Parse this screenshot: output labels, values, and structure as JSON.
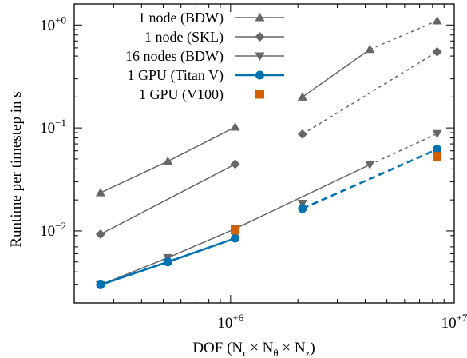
{
  "chart_data": {
    "type": "line",
    "title": "",
    "xlabel": "DOF (N_r × N_θ × N_z)",
    "ylabel": "Runtime per timestep in s",
    "xscale": "log",
    "yscale": "log",
    "xlim": [
      200000,
      10000000
    ],
    "ylim": [
      0.002,
      1.6
    ],
    "xticks": [
      {
        "value": 1000000,
        "base": "10",
        "exp": "+6"
      },
      {
        "value": 10000000,
        "base": "10",
        "exp": "+7"
      }
    ],
    "yticks": [
      {
        "value": 1,
        "base": "10",
        "exp": "+0"
      },
      {
        "value": 0.1,
        "base": "10",
        "exp": "−1"
      },
      {
        "value": 0.01,
        "base": "10",
        "exp": "−2"
      }
    ],
    "legend_position": "top-right",
    "series": [
      {
        "name": "1 node (BDW)",
        "marker": "triangle-up",
        "color": "#666666",
        "points": [
          [
            262144,
            0.0235
          ],
          [
            524288,
            0.0475
          ],
          [
            1048576,
            0.102
          ],
          [
            2097152,
            0.2
          ],
          [
            4194304,
            0.58
          ],
          [
            8388608,
            1.1
          ]
        ],
        "solid_segments": [
          [
            0,
            1
          ],
          [
            1,
            2
          ],
          [
            3,
            4
          ]
        ],
        "dashed_segments": [
          [
            4,
            5
          ]
        ]
      },
      {
        "name": "1 node (SKL)",
        "marker": "diamond",
        "color": "#666666",
        "points": [
          [
            262144,
            0.0093
          ],
          [
            1048576,
            0.0445
          ],
          [
            2097152,
            0.087
          ],
          [
            8388608,
            0.55
          ]
        ],
        "solid_segments": [
          [
            0,
            1
          ]
        ],
        "dashed_segments": [
          [
            2,
            3
          ]
        ]
      },
      {
        "name": "16 nodes (BDW)",
        "marker": "triangle-down",
        "color": "#666666",
        "points": [
          [
            262144,
            0.003
          ],
          [
            524288,
            0.0055
          ],
          [
            1048576,
            0.0105
          ],
          [
            2097152,
            0.0185
          ],
          [
            4194304,
            0.044
          ],
          [
            8388608,
            0.088
          ]
        ],
        "solid_segments": [
          [
            0,
            1
          ],
          [
            1,
            2
          ],
          [
            2,
            4
          ]
        ],
        "dashed_segments": [
          [
            4,
            5
          ]
        ]
      },
      {
        "name": "1 GPU (Titan V)",
        "marker": "circle",
        "color": "#0072b2",
        "points": [
          [
            262144,
            0.003
          ],
          [
            524288,
            0.005
          ],
          [
            1048576,
            0.0085
          ],
          [
            2097152,
            0.0165
          ],
          [
            8388608,
            0.062
          ]
        ],
        "solid_segments": [
          [
            0,
            1
          ],
          [
            1,
            2
          ]
        ],
        "dashed_segments": [
          [
            3,
            4
          ]
        ]
      },
      {
        "name": "1 GPU (V100)",
        "marker": "square",
        "color": "#d55e00",
        "points": [
          [
            1048576,
            0.0102
          ],
          [
            8388608,
            0.053
          ]
        ],
        "solid_segments": [],
        "dashed_segments": []
      }
    ]
  }
}
